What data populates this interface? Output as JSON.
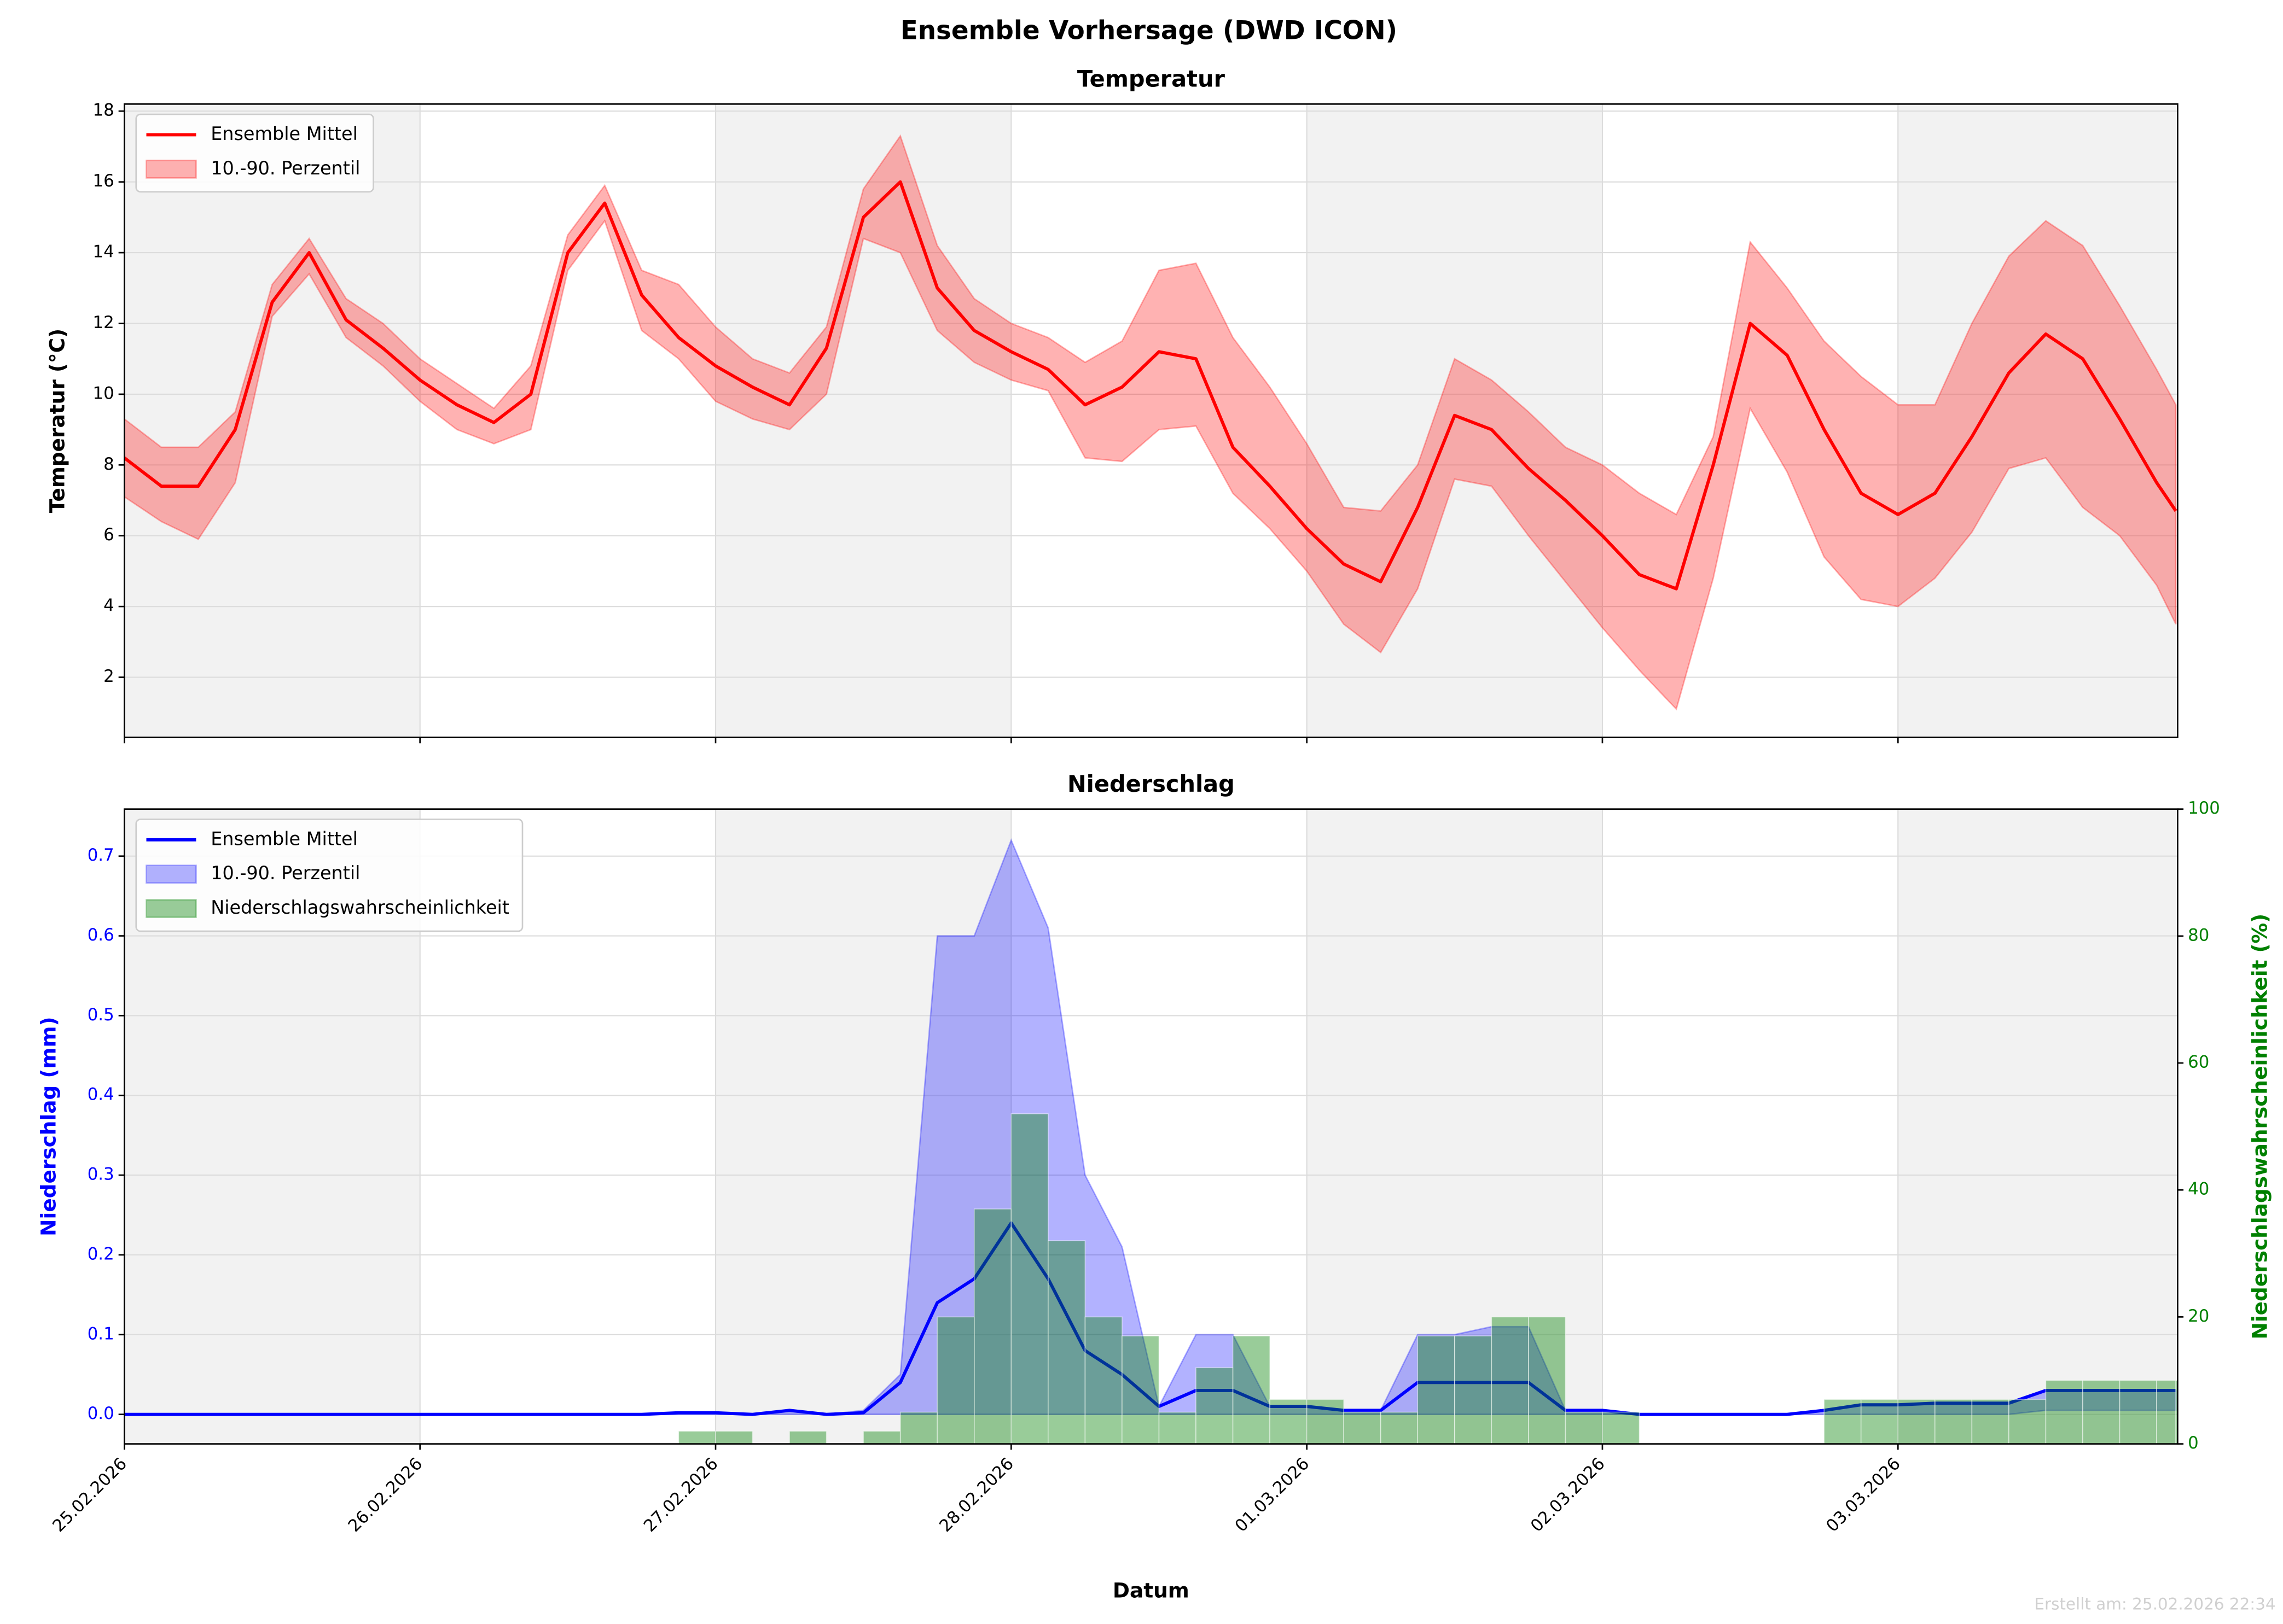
{
  "title": "Ensemble Vorhersage (DWD ICON)",
  "footer": "Erstellt am: 25.02.2026 22:34",
  "chart_data": [
    {
      "type": "line",
      "title": "Temperatur",
      "y_label": "Temperatur (°C)",
      "legend": "upper left",
      "grid": true,
      "x": [
        0,
        0.125,
        0.25,
        0.375,
        0.5,
        0.625,
        0.75,
        0.875,
        1,
        1.125,
        1.25,
        1.375,
        1.5,
        1.625,
        1.75,
        1.875,
        2,
        2.125,
        2.25,
        2.375,
        2.5,
        2.625,
        2.75,
        2.875,
        3,
        3.125,
        3.25,
        3.375,
        3.5,
        3.625,
        3.75,
        3.875,
        4,
        4.125,
        4.25,
        4.375,
        4.5,
        4.625,
        4.75,
        4.875,
        5,
        5.125,
        5.25,
        5.375,
        5.5,
        5.625,
        5.75,
        5.875,
        6,
        6.125,
        6.25,
        6.375,
        6.5,
        6.625,
        6.75,
        6.875,
        6.94
      ],
      "xlim": [
        0,
        6.946
      ],
      "xticks": [
        0,
        1,
        2,
        3,
        4,
        5,
        6
      ],
      "ylim": [
        0.3,
        18.2
      ],
      "yticks": [
        2,
        4,
        6,
        8,
        10,
        12,
        14,
        16,
        18
      ],
      "series": [
        {
          "name": "10.-90. Perzentil",
          "type": "band",
          "color": "#ff0000",
          "low": [
            7.1,
            6.4,
            5.9,
            7.5,
            12.2,
            13.4,
            11.6,
            10.8,
            9.8,
            9.0,
            8.6,
            9.0,
            13.5,
            14.9,
            11.8,
            11.0,
            9.8,
            9.3,
            9.0,
            10.0,
            14.4,
            14.0,
            11.8,
            10.9,
            10.4,
            10.1,
            8.2,
            8.1,
            9.0,
            9.1,
            7.2,
            6.2,
            5.0,
            3.5,
            2.7,
            4.5,
            7.6,
            7.4,
            6.0,
            4.7,
            3.4,
            2.2,
            1.1,
            4.8,
            9.6,
            7.8,
            5.4,
            4.2,
            4.0,
            4.8,
            6.1,
            7.9,
            8.2,
            6.8,
            6.0,
            4.6,
            3.5
          ],
          "high": [
            9.3,
            8.5,
            8.5,
            9.5,
            13.1,
            14.4,
            12.7,
            12.0,
            11.0,
            10.3,
            9.6,
            10.8,
            14.5,
            15.9,
            13.5,
            13.1,
            11.9,
            11.0,
            10.6,
            11.9,
            15.8,
            17.3,
            14.2,
            12.7,
            12.0,
            11.6,
            10.9,
            11.5,
            13.5,
            13.7,
            11.6,
            10.2,
            8.6,
            6.8,
            6.7,
            8.0,
            11.0,
            10.4,
            9.5,
            8.5,
            8.0,
            7.2,
            6.6,
            8.8,
            14.3,
            13.0,
            11.5,
            10.5,
            9.7,
            9.7,
            12.0,
            13.9,
            14.9,
            14.2,
            12.5,
            10.7,
            9.7
          ]
        },
        {
          "name": "Ensemble Mittel",
          "type": "line",
          "color": "#ff0000",
          "values": [
            8.2,
            7.4,
            7.4,
            9.0,
            12.6,
            14.0,
            12.1,
            11.3,
            10.4,
            9.7,
            9.2,
            10.0,
            14.0,
            15.4,
            12.8,
            11.6,
            10.8,
            10.2,
            9.7,
            11.3,
            15.0,
            16.0,
            13.0,
            11.8,
            11.2,
            10.7,
            9.7,
            10.2,
            11.2,
            11.0,
            8.5,
            7.4,
            6.2,
            5.2,
            4.7,
            6.8,
            9.4,
            9.0,
            7.9,
            7.0,
            6.0,
            4.9,
            4.5,
            8.0,
            12.0,
            11.1,
            9.0,
            7.2,
            6.6,
            7.2,
            8.8,
            10.6,
            11.7,
            11.0,
            9.3,
            7.5,
            6.7
          ]
        }
      ]
    },
    {
      "type": "line",
      "title": "Niederschlag",
      "x_label": "Datum",
      "y_label": "Niederschlag (mm)",
      "y2_label": "Niederschlagswahrscheinlichkeit (%)",
      "y_color": "#0000ff",
      "y2_color": "#008000",
      "legend": "upper left",
      "grid": true,
      "x": [
        0,
        0.125,
        0.25,
        0.375,
        0.5,
        0.625,
        0.75,
        0.875,
        1,
        1.125,
        1.25,
        1.375,
        1.5,
        1.625,
        1.75,
        1.875,
        2,
        2.125,
        2.25,
        2.375,
        2.5,
        2.625,
        2.75,
        2.875,
        3,
        3.125,
        3.25,
        3.375,
        3.5,
        3.625,
        3.75,
        3.875,
        4,
        4.125,
        4.25,
        4.375,
        4.5,
        4.625,
        4.75,
        4.875,
        5,
        5.125,
        5.25,
        5.375,
        5.5,
        5.625,
        5.75,
        5.875,
        6,
        6.125,
        6.25,
        6.375,
        6.5,
        6.625,
        6.75,
        6.875,
        6.94
      ],
      "xlim": [
        0,
        6.946
      ],
      "xticks": [
        {
          "value": 0,
          "label": "25.02.2026"
        },
        {
          "value": 1,
          "label": "26.02.2026"
        },
        {
          "value": 2,
          "label": "27.02.2026"
        },
        {
          "value": 3,
          "label": "28.02.2026"
        },
        {
          "value": 4,
          "label": "01.03.2026"
        },
        {
          "value": 5,
          "label": "02.03.2026"
        },
        {
          "value": 6,
          "label": "03.03.2026"
        }
      ],
      "ylim": [
        -0.037,
        0.759
      ],
      "yticks": [
        {
          "value": 0,
          "label": "0.0"
        },
        0.1,
        0.2,
        0.3,
        0.4,
        0.5,
        0.6,
        0.7
      ],
      "y2lim": [
        0,
        100
      ],
      "y2ticks": [
        0,
        20,
        40,
        60,
        80,
        100
      ],
      "series": [
        {
          "name": "10.-90. Perzentil",
          "type": "band",
          "color": "#0000ff",
          "low": [
            0,
            0,
            0,
            0,
            0,
            0,
            0,
            0,
            0,
            0,
            0,
            0,
            0,
            0,
            0,
            0,
            0,
            0,
            0,
            0,
            0,
            0,
            0,
            0,
            0,
            0,
            0,
            0,
            0,
            0,
            0,
            0,
            0,
            0,
            0,
            0,
            0,
            0,
            0,
            0,
            0,
            0,
            0,
            0,
            0,
            0,
            0,
            0,
            0,
            0,
            0,
            0,
            0.005,
            0.005,
            0.005,
            0.005,
            0.005
          ],
          "high": [
            0,
            0,
            0,
            0,
            0,
            0,
            0,
            0,
            0,
            0,
            0,
            0,
            0,
            0,
            0,
            0.002,
            0.002,
            0,
            0.005,
            0,
            0.005,
            0.05,
            0.6,
            0.6,
            0.72,
            0.61,
            0.3,
            0.21,
            0.01,
            0.1,
            0.1,
            0.01,
            0.01,
            0.005,
            0.005,
            0.1,
            0.1,
            0.11,
            0.11,
            0.005,
            0.005,
            0,
            0,
            0,
            0,
            0,
            0.005,
            0.012,
            0.012,
            0.014,
            0.014,
            0.014,
            0.03,
            0.03,
            0.03,
            0.03,
            0.03
          ]
        },
        {
          "name": "Ensemble Mittel",
          "type": "line",
          "color": "#0000ff",
          "values": [
            0,
            0,
            0,
            0,
            0,
            0,
            0,
            0,
            0,
            0,
            0,
            0,
            0,
            0,
            0,
            0.002,
            0.002,
            0,
            0.005,
            0,
            0.002,
            0.04,
            0.14,
            0.17,
            0.24,
            0.17,
            0.08,
            0.05,
            0.01,
            0.03,
            0.03,
            0.01,
            0.01,
            0.005,
            0.005,
            0.04,
            0.04,
            0.04,
            0.04,
            0.005,
            0.005,
            0,
            0,
            0,
            0,
            0,
            0.005,
            0.012,
            0.012,
            0.014,
            0.014,
            0.014,
            0.03,
            0.03,
            0.03,
            0.03,
            0.03
          ]
        },
        {
          "name": "Niederschlagswahrscheinlichkeit",
          "type": "bar",
          "axis": "y2",
          "color": "#008000",
          "values": [
            0,
            0,
            0,
            0,
            0,
            0,
            0,
            0,
            0,
            0,
            0,
            0,
            0,
            0,
            0,
            2,
            2,
            0,
            2,
            0,
            2,
            5,
            20,
            37,
            52,
            32,
            20,
            17,
            5,
            12,
            17,
            7,
            7,
            5,
            5,
            17,
            17,
            20,
            20,
            5,
            5,
            0,
            0,
            0,
            0,
            0,
            7,
            7,
            7,
            7,
            7,
            7,
            10,
            10,
            10,
            10,
            10
          ]
        }
      ]
    }
  ]
}
